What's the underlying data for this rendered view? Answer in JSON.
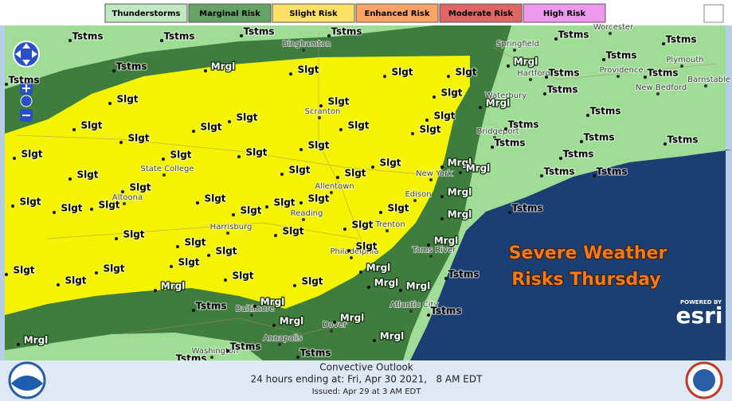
{
  "legend": [
    {
      "label": "Thunderstorms",
      "color": "#c1e9c1"
    },
    {
      "label": "Marginal Risk",
      "color": "#66a366"
    },
    {
      "label": "Slight Risk",
      "color": "#ffe066"
    },
    {
      "label": "Enhanced Risk",
      "color": "#ffa366"
    },
    {
      "label": "Moderate Risk",
      "color": "#e06666"
    },
    {
      "label": "High Risk",
      "color": "#ee99ee"
    }
  ],
  "tstms_labels": [
    "Tstms",
    "Tstms",
    "Tstms",
    "Tstms",
    "Tstms",
    "Tstms",
    "Tstms",
    "Tstms",
    "Tstms",
    "Tstms",
    "Tstms",
    "Tstms",
    "Tstms",
    "Tstms",
    "Tstms",
    "Tstms",
    "Tstms",
    "Tstms",
    "Tstms",
    "Tstms",
    "Tstms",
    "Tstms",
    "Tstms",
    "Tstms",
    "Tstms",
    "Tstms",
    "Tstms"
  ],
  "slgt_labels": [
    "Slgt",
    "Slgt",
    "Slgt",
    "Slgt",
    "Slgt",
    "Slgt",
    "Slgt",
    "Slgt",
    "Slgt",
    "Slgt",
    "Slgt",
    "Slgt",
    "Slgt",
    "Slgt",
    "Slgt",
    "Slgt",
    "Slgt",
    "Slgt",
    "Slgt",
    "Slgt",
    "Slgt",
    "Slgt",
    "Slgt",
    "Slgt",
    "Slgt",
    "Slgt",
    "Slgt",
    "Slgt",
    "Slgt",
    "Slgt",
    "Slgt",
    "Slgt",
    "Slgt",
    "Slgt",
    "Slgt",
    "Slgt",
    "Slgt",
    "Slgt",
    "Slgt",
    "Slgt",
    "Slgt",
    "Slgt"
  ],
  "mrgl_labels": [
    "Mrgl",
    "Mrgl",
    "Mrgl",
    "Mrgl",
    "Mrgl",
    "Mrgl",
    "Mrgl",
    "Mrgl",
    "Mrgl",
    "Mrgl",
    "Mrgl",
    "Mrgl",
    "Mrgl",
    "Mrgl",
    "Mrgl",
    "Mrgl",
    "Mrgl"
  ],
  "places": [
    "Binghamton",
    "Springfield",
    "Worcester",
    "Hartford",
    "Providence",
    "Plymouth",
    "New Bedford",
    "Barnstable",
    "Waterbury",
    "Bridgeport",
    "Scranton",
    "State College",
    "Altoona",
    "Allentown",
    "New York",
    "Edison",
    "Harrisburg",
    "Reading",
    "Trenton",
    "Philadelphia",
    "Toms River",
    "Atlantic City",
    "Dover",
    "Baltimore",
    "Annapolis",
    "Washington"
  ],
  "overlay": {
    "line1": "Severe Weather",
    "line2": "Risks Thursday"
  },
  "esri": {
    "powered_by": "POWERED BY",
    "brand": "esri"
  },
  "footer": {
    "title": "Convective Outlook",
    "valid": "24 hours ending at: Fri, Apr 30 2021,   8 AM EDT",
    "issued": "Issued: Apr 29 at 3 AM EDT"
  }
}
